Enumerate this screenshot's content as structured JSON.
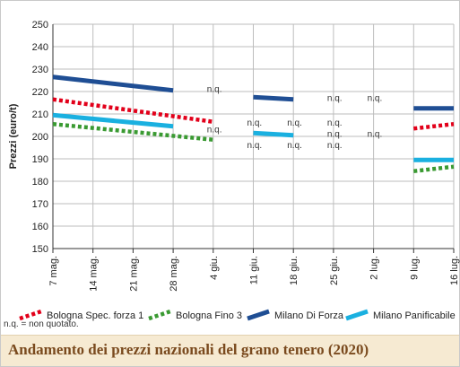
{
  "chart_data": {
    "type": "line",
    "title": "Andamento dei prezzi nazionali del grano tenero (2020)",
    "ylabel": "Prezzi (euro/t)",
    "xlabel": "",
    "ylim": [
      150,
      250
    ],
    "yticks": [
      150,
      160,
      170,
      180,
      190,
      200,
      210,
      220,
      230,
      240,
      250
    ],
    "categories": [
      "7 mag.",
      "14 mag.",
      "21 mag.",
      "28 mag.",
      "4 giu.",
      "11 giu.",
      "18 giu.",
      "25 giu.",
      "2 lug.",
      "9 lug.",
      "16 lug."
    ],
    "grid": true,
    "legend_position": "bottom",
    "series": [
      {
        "name": "Bologna Spec. forza 1",
        "color": "#e2001a",
        "dash": "dotted",
        "segments": [
          {
            "from": "7 mag.",
            "to": "4 giu.",
            "y": [
              216.5,
              206.5
            ]
          },
          {
            "from": "9 lug.",
            "to": "16 lug.",
            "y": [
              203.5,
              205.5
            ]
          }
        ]
      },
      {
        "name": "Bologna Fino 3",
        "color": "#3a9a32",
        "dash": "dotted",
        "segments": [
          {
            "from": "7 mag.",
            "to": "4 giu.",
            "y": [
              205.5,
              198.5
            ]
          },
          {
            "from": "9 lug.",
            "to": "16 lug.",
            "y": [
              184.5,
              186.5
            ]
          }
        ]
      },
      {
        "name": "Milano Di Forza",
        "color": "#1f4e94",
        "dash": "solid",
        "segments": [
          {
            "from": "7 mag.",
            "to": "28 mag.",
            "y": [
              226.5,
              220.5
            ]
          },
          {
            "from": "11 giu.",
            "to": "18 giu.",
            "y": [
              217.5,
              216.5
            ]
          },
          {
            "from": "9 lug.",
            "to": "16 lug.",
            "y": [
              212.5,
              212.5
            ]
          }
        ]
      },
      {
        "name": "Milano Panificabile",
        "color": "#1ab0e0",
        "dash": "solid",
        "segments": [
          {
            "from": "7 mag.",
            "to": "28 mag.",
            "y": [
              209.5,
              204.5
            ]
          },
          {
            "from": "11 giu.",
            "to": "18 giu.",
            "y": [
              201.5,
              200.5
            ]
          },
          {
            "from": "9 lug.",
            "to": "16 lug.",
            "y": [
              189.5,
              189.5
            ]
          }
        ]
      }
    ],
    "annotations": [
      {
        "text": "n.q.",
        "x": "4 giu.",
        "y": 221
      },
      {
        "text": "n.q.",
        "x": "4 giu.",
        "y": 203
      },
      {
        "text": "n.q.",
        "x": "11 giu.",
        "y": 206
      },
      {
        "text": "n.q.",
        "x": "11 giu.",
        "y": 196
      },
      {
        "text": "n.q.",
        "x": "18 giu.",
        "y": 206
      },
      {
        "text": "n.q.",
        "x": "18 giu.",
        "y": 196
      },
      {
        "text": "n.q.",
        "x": "25 giu.",
        "y": 217
      },
      {
        "text": "n.q.",
        "x": "25 giu.",
        "y": 206
      },
      {
        "text": "n.q.",
        "x": "25 giu.",
        "y": 201
      },
      {
        "text": "n.q.",
        "x": "25 giu.",
        "y": 196
      },
      {
        "text": "n.q.",
        "x": "2 lug.",
        "y": 217
      },
      {
        "text": "n.q.",
        "x": "2 lug.",
        "y": 201
      }
    ],
    "footnote": "n.q. = non quotato."
  }
}
